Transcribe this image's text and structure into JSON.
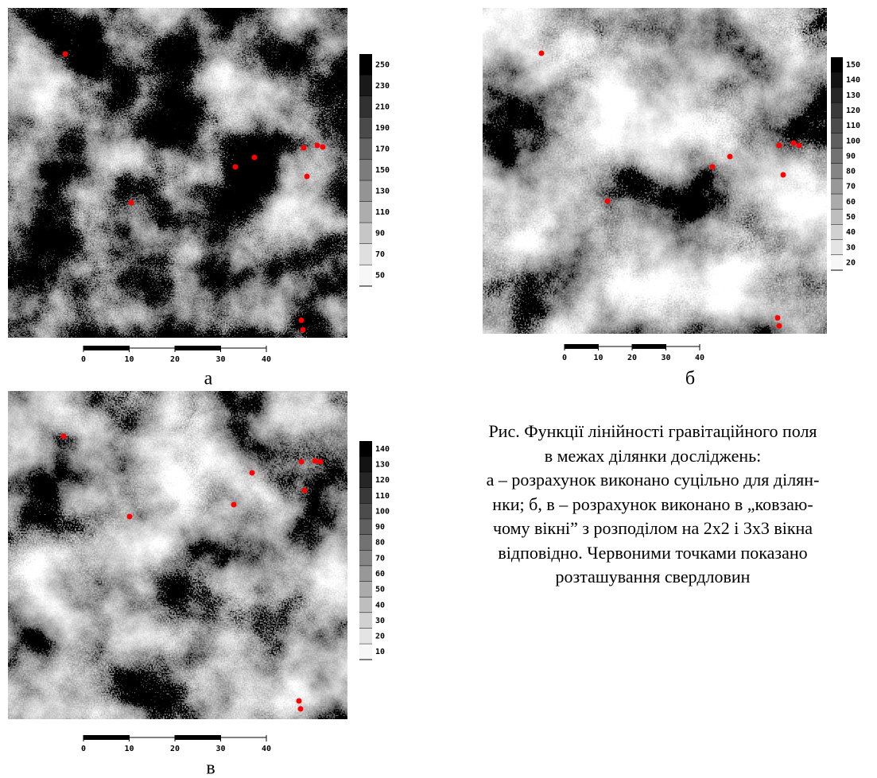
{
  "panels": [
    {
      "label": "а",
      "colorbar": [
        250,
        230,
        210,
        190,
        170,
        150,
        130,
        110,
        90,
        70,
        50
      ],
      "scale": [
        0,
        10,
        20,
        30,
        40
      ]
    },
    {
      "label": "б",
      "colorbar": [
        150,
        140,
        130,
        120,
        110,
        100,
        90,
        80,
        70,
        60,
        50,
        40,
        30,
        20
      ],
      "scale": [
        0,
        10,
        20,
        30,
        40
      ]
    },
    {
      "label": "в",
      "colorbar": [
        140,
        130,
        120,
        110,
        100,
        90,
        80,
        70,
        60,
        50,
        40,
        30,
        20,
        10
      ],
      "scale": [
        0,
        10,
        20,
        30,
        40
      ]
    }
  ],
  "caption": [
    "Рис. Функції лінійності гравітаційного поля",
    "в межах ділянки досліджень:",
    "а – розрахунок виконано суцільно для ділян-",
    "нки; б, в – розрахунок виконано в „ковзаю-",
    "чому вікні” з розподілом на 2х2 і 3х3 вікна",
    "відповідно. Червоними точками показано",
    "розташування свердловин"
  ]
}
